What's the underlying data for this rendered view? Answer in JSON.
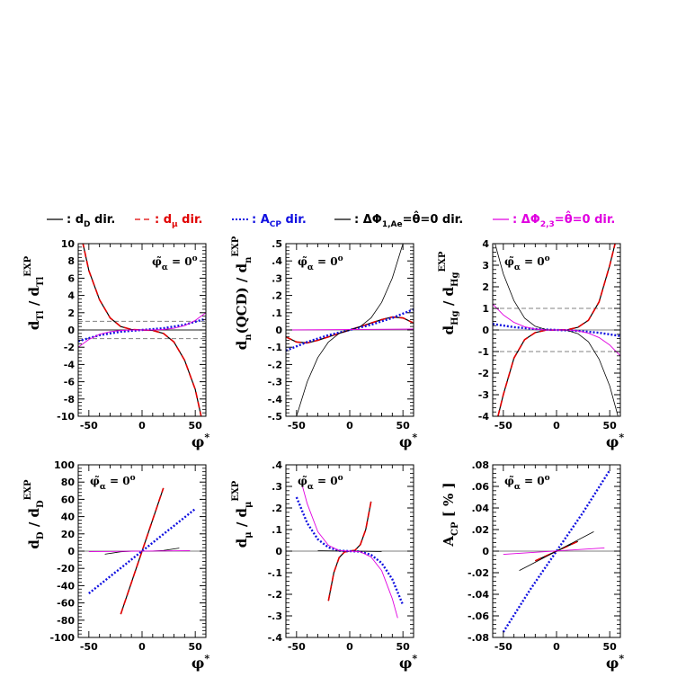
{
  "legend": [
    {
      "text": "d_D dir.",
      "label": ": d",
      "sub": "D",
      "tail": " dir.",
      "color": "#000000",
      "dash": "solid"
    },
    {
      "text": "d_mu dir.",
      "label": ": d",
      "sub": "μ",
      "tail": " dir.",
      "color": "#e00000",
      "dash": "dashed"
    },
    {
      "text": "A_CP dir.",
      "label": ": A",
      "sub": "CP",
      "tail": " dir.",
      "color": "#1010e0",
      "dash": "dotted"
    },
    {
      "text": "Delta Phi_1,Ae = theta = 0 dir.",
      "label": ": ΔΦ",
      "sub": "1,Ae",
      "tail": "=θ̂=0 dir.",
      "color": "#000000",
      "dash": "solid"
    },
    {
      "text": "Delta Phi_2,3 = theta = 0 dir.",
      "label": ": ΔΦ",
      "sub": "2,3",
      "tail": "=θ̂=0 dir.",
      "color": "#e000e0",
      "dash": "solid"
    }
  ],
  "colors": {
    "black": "#000000",
    "red": "#e00000",
    "blue": "#1010e0",
    "magenta": "#e000e0",
    "grid_dash": "#808080"
  },
  "chart_data": [
    {
      "type": "line",
      "id": "p1",
      "ylabel": "d_Tl / d_Tl^EXP",
      "ylabel_parts": {
        "main": "d",
        "sub": "Tl",
        "sep": " / d",
        "sub2": "Tl",
        "sup": "EXP"
      },
      "xlabel": "φ*",
      "annotation": "φ̃_α = 0°",
      "xlim": [
        -60,
        60
      ],
      "ylim": [
        -10,
        10
      ],
      "xticks": [
        -50,
        0,
        50
      ],
      "yticks": [
        -10,
        -8,
        -6,
        -4,
        -2,
        0,
        2,
        4,
        6,
        8,
        10
      ],
      "hlines": [
        1,
        -1
      ],
      "series": [
        {
          "style": "d_D",
          "x": [
            -60,
            -50,
            -40,
            -30,
            -20,
            -10,
            0,
            10,
            20,
            30,
            40,
            50,
            60
          ],
          "y": [
            12.5,
            6.9,
            3.5,
            1.4,
            0.4,
            0.05,
            0,
            -0.05,
            -0.4,
            -1.4,
            -3.5,
            -6.9,
            -12.5
          ]
        },
        {
          "style": "d_mu",
          "x": [
            -60,
            -50,
            -40,
            -30,
            -20,
            -10,
            0,
            10,
            20,
            30,
            40,
            50,
            60
          ],
          "y": [
            12.5,
            6.9,
            3.5,
            1.4,
            0.4,
            0.05,
            0,
            -0.05,
            -0.4,
            -1.4,
            -3.5,
            -6.9,
            -12.5
          ]
        },
        {
          "style": "A_CP",
          "x": [
            -60,
            -40,
            -20,
            0,
            20,
            40,
            60
          ],
          "y": [
            -1.3,
            -0.6,
            -0.2,
            0,
            0.2,
            0.6,
            1.3
          ]
        },
        {
          "style": "phi1",
          "x": [
            -60,
            60
          ],
          "y": [
            0,
            0
          ]
        },
        {
          "style": "phi23",
          "x": [
            -60,
            -50,
            -40,
            -30,
            -20,
            -10,
            0,
            10,
            20,
            30,
            40,
            50,
            60
          ],
          "y": [
            -2.0,
            -1.1,
            -0.5,
            -0.2,
            -0.05,
            0,
            0,
            0,
            0.05,
            0.2,
            0.5,
            1.1,
            2.0
          ]
        }
      ]
    },
    {
      "type": "line",
      "id": "p2",
      "ylabel": "d_n(QCD) / d_n^EXP",
      "ylabel_parts": {
        "main": "d",
        "sub": "n",
        "sep": "(QCD) / d",
        "sub2": "n",
        "sup": "EXP"
      },
      "xlabel": "φ*",
      "annotation": "φ̃_α = 0°",
      "xlim": [
        -60,
        60
      ],
      "ylim": [
        -0.5,
        0.5
      ],
      "xticks": [
        -50,
        0,
        50
      ],
      "yticks": [
        -0.5,
        -0.4,
        -0.3,
        -0.2,
        -0.1,
        0,
        0.1,
        0.2,
        0.3,
        0.4,
        0.5
      ],
      "hlines": [],
      "series": [
        {
          "style": "d_D",
          "x": [
            -60,
            -50,
            -40,
            -30,
            -20,
            -10,
            0,
            10,
            20,
            30,
            40,
            50,
            60
          ],
          "y": [
            -0.04,
            -0.07,
            -0.075,
            -0.06,
            -0.04,
            -0.02,
            0,
            0.02,
            0.04,
            0.06,
            0.075,
            0.07,
            0.04
          ]
        },
        {
          "style": "d_mu",
          "x": [
            -60,
            -50,
            -40,
            -30,
            -20,
            -10,
            0,
            10,
            20,
            30,
            40,
            50,
            60
          ],
          "y": [
            -0.04,
            -0.07,
            -0.075,
            -0.06,
            -0.04,
            -0.02,
            0,
            0.02,
            0.04,
            0.06,
            0.075,
            0.07,
            0.04
          ]
        },
        {
          "style": "A_CP",
          "x": [
            -60,
            -40,
            -20,
            0,
            20,
            40,
            60
          ],
          "y": [
            -0.12,
            -0.07,
            -0.03,
            0,
            0.03,
            0.07,
            0.12
          ]
        },
        {
          "style": "phi1",
          "x": [
            -50,
            -40,
            -30,
            -20,
            -10,
            0,
            10,
            20,
            30,
            40,
            50
          ],
          "y": [
            -0.5,
            -0.3,
            -0.16,
            -0.07,
            -0.02,
            0,
            0.02,
            0.07,
            0.16,
            0.3,
            0.5
          ]
        },
        {
          "style": "phi23",
          "x": [
            -60,
            60
          ],
          "y": [
            0,
            0.005
          ]
        }
      ]
    },
    {
      "type": "line",
      "id": "p3",
      "ylabel": "d_Hg / d_Hg^EXP",
      "ylabel_parts": {
        "main": "d",
        "sub": "Hg",
        "sep": " / d",
        "sub2": "Hg",
        "sup": "EXP"
      },
      "xlabel": "φ*",
      "annotation": "φ̃_α = 0°",
      "xlim": [
        -60,
        60
      ],
      "ylim": [
        -4,
        4
      ],
      "xticks": [
        -50,
        0,
        50
      ],
      "yticks": [
        -4,
        -3,
        -2,
        -1,
        0,
        1,
        2,
        3,
        4
      ],
      "hlines": [
        1,
        -1
      ],
      "series": [
        {
          "style": "d_D",
          "x": [
            -55,
            -50,
            -40,
            -30,
            -20,
            -10,
            0,
            10,
            20,
            30,
            40,
            50,
            55
          ],
          "y": [
            -4,
            -3.0,
            -1.3,
            -0.45,
            -0.12,
            -0.01,
            0,
            0.01,
            0.12,
            0.45,
            1.3,
            3.0,
            4
          ]
        },
        {
          "style": "d_mu",
          "x": [
            -55,
            -50,
            -40,
            -30,
            -20,
            -10,
            0,
            10,
            20,
            30,
            40,
            50,
            55
          ],
          "y": [
            -4,
            -3.0,
            -1.3,
            -0.45,
            -0.12,
            -0.01,
            0,
            0.01,
            0.12,
            0.45,
            1.3,
            3.0,
            4
          ]
        },
        {
          "style": "A_CP",
          "x": [
            -60,
            -40,
            -20,
            0,
            20,
            40,
            60
          ],
          "y": [
            0.28,
            0.13,
            0.04,
            0,
            -0.04,
            -0.13,
            -0.28
          ]
        },
        {
          "style": "phi1",
          "x": [
            -60,
            -50,
            -40,
            -30,
            -20,
            -10,
            0,
            10,
            20,
            30,
            40,
            50,
            60
          ],
          "y": [
            4.4,
            2.6,
            1.35,
            0.55,
            0.17,
            0.02,
            0,
            -0.02,
            -0.17,
            -0.55,
            -1.35,
            -2.6,
            -4.4
          ]
        },
        {
          "style": "phi23",
          "x": [
            -60,
            -50,
            -40,
            -30,
            -20,
            -10,
            0,
            10,
            20,
            30,
            40,
            50,
            60
          ],
          "y": [
            1.2,
            0.7,
            0.35,
            0.15,
            0.04,
            0,
            0,
            0,
            -0.04,
            -0.15,
            -0.35,
            -0.7,
            -1.2
          ]
        }
      ]
    },
    {
      "type": "line",
      "id": "p4",
      "ylabel": "d_D / d_D^EXP",
      "ylabel_parts": {
        "main": "d",
        "sub": "D",
        "sep": " / d",
        "sub2": "D",
        "sup": "EXP"
      },
      "xlabel": "φ*",
      "annotation": "φ̃_α = 0°",
      "xlim": [
        -60,
        60
      ],
      "ylim": [
        -100,
        100
      ],
      "xticks": [
        -50,
        0,
        50
      ],
      "yticks": [
        -100,
        -80,
        -60,
        -40,
        -20,
        0,
        20,
        40,
        60,
        80,
        100
      ],
      "hlines": [],
      "series": [
        {
          "style": "d_D",
          "x": [
            -20,
            20
          ],
          "y": [
            -73,
            73
          ]
        },
        {
          "style": "d_mu",
          "x": [
            -20,
            20
          ],
          "y": [
            -73,
            73
          ]
        },
        {
          "style": "A_CP",
          "x": [
            -50,
            50
          ],
          "y": [
            -49,
            49
          ]
        },
        {
          "style": "phi1",
          "x": [
            -35,
            -20,
            -10,
            0,
            10,
            20,
            35
          ],
          "y": [
            -3.5,
            -0.7,
            -0.1,
            0,
            0.1,
            0.7,
            3.5
          ]
        },
        {
          "style": "phi23",
          "x": [
            -50,
            45
          ],
          "y": [
            -0.6,
            0.6
          ]
        }
      ]
    },
    {
      "type": "line",
      "id": "p5",
      "ylabel": "d_μ / d_μ^EXP",
      "ylabel_parts": {
        "main": "d",
        "sub": "μ",
        "sep": " / d",
        "sub2": "μ",
        "sup": "EXP"
      },
      "xlabel": "φ*",
      "annotation": "φ̃_α = 0°",
      "xlim": [
        -60,
        60
      ],
      "ylim": [
        -0.4,
        0.4
      ],
      "xticks": [
        -50,
        0,
        50
      ],
      "yticks": [
        -0.4,
        -0.3,
        -0.2,
        -0.1,
        0,
        0.1,
        0.2,
        0.3,
        0.4
      ],
      "hlines": [],
      "series": [
        {
          "style": "d_D",
          "x": [
            -20,
            -15,
            -10,
            -5,
            0,
            5,
            10,
            15,
            20
          ],
          "y": [
            -0.23,
            -0.1,
            -0.03,
            -0.004,
            0,
            0.004,
            0.03,
            0.1,
            0.23
          ]
        },
        {
          "style": "d_mu",
          "x": [
            -20,
            -15,
            -10,
            -5,
            0,
            5,
            10,
            15,
            20
          ],
          "y": [
            -0.23,
            -0.1,
            -0.03,
            -0.004,
            0,
            0.004,
            0.03,
            0.1,
            0.23
          ]
        },
        {
          "style": "A_CP",
          "x": [
            -50,
            -40,
            -30,
            -20,
            -10,
            0,
            10,
            20,
            30,
            40,
            50
          ],
          "y": [
            0.25,
            0.13,
            0.055,
            0.017,
            0.002,
            0,
            -0.002,
            -0.017,
            -0.055,
            -0.13,
            -0.25
          ]
        },
        {
          "style": "phi1",
          "x": [
            -30,
            -15,
            0,
            15,
            30
          ],
          "y": [
            0.002,
            0.001,
            0,
            -0.001,
            -0.002
          ]
        },
        {
          "style": "phi23",
          "x": [
            -45,
            -40,
            -30,
            -20,
            -10,
            0,
            10,
            20,
            30,
            40,
            45
          ],
          "y": [
            0.31,
            0.22,
            0.09,
            0.027,
            0.003,
            0,
            -0.003,
            -0.027,
            -0.09,
            -0.22,
            -0.31
          ]
        }
      ]
    },
    {
      "type": "line",
      "id": "p6",
      "ylabel": "A_CP [ % ]",
      "ylabel_parts": {
        "main": "A",
        "sub": "CP",
        "sep": " [ % ]",
        "sub2": "",
        "sup": ""
      },
      "xlabel": "φ*",
      "annotation": "φ̃_α = 0°",
      "xlim": [
        -60,
        60
      ],
      "ylim": [
        -0.08,
        0.08
      ],
      "xticks": [
        -50,
        0,
        50
      ],
      "yticks": [
        -0.08,
        -0.06,
        -0.04,
        -0.02,
        0,
        0.02,
        0.04,
        0.06,
        0.08
      ],
      "hlines": [],
      "series": [
        {
          "style": "d_D",
          "x": [
            -20,
            20
          ],
          "y": [
            -0.009,
            0.009
          ]
        },
        {
          "style": "d_mu",
          "x": [
            -20,
            20
          ],
          "y": [
            -0.009,
            0.009
          ]
        },
        {
          "style": "A_CP",
          "x": [
            -50,
            -25,
            0,
            25,
            50
          ],
          "y": [
            -0.075,
            -0.036,
            0,
            0.036,
            0.075
          ]
        },
        {
          "style": "phi1",
          "x": [
            -35,
            35
          ],
          "y": [
            -0.018,
            0.018
          ]
        },
        {
          "style": "phi23",
          "x": [
            -50,
            45
          ],
          "y": [
            -0.003,
            0.003
          ]
        }
      ]
    }
  ]
}
